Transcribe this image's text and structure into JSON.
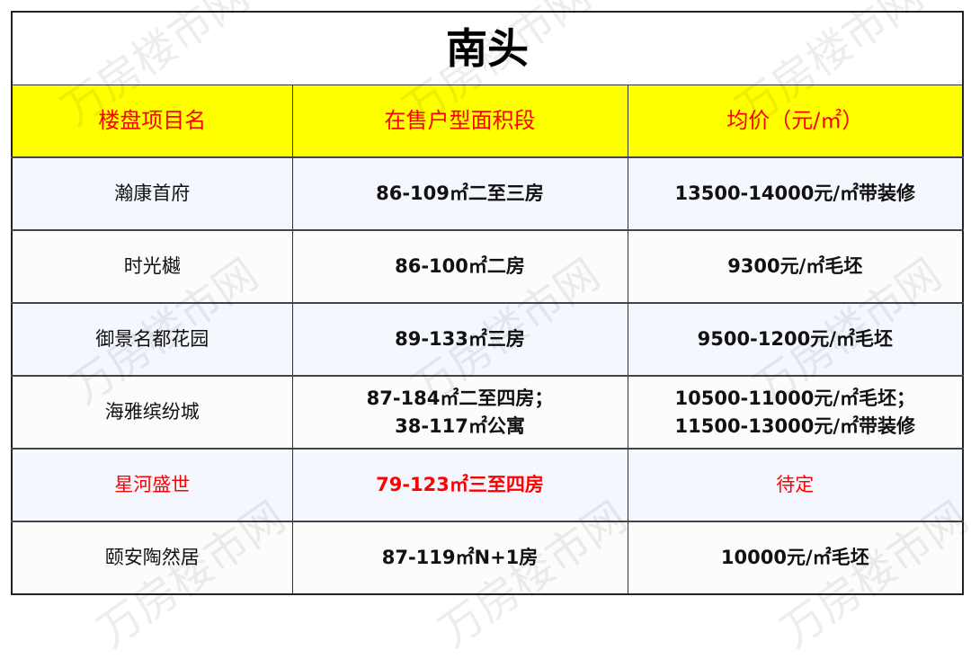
{
  "title": "南头",
  "watermark": "万房楼市网",
  "headers": [
    "楼盘项目名",
    "在售户型面积段",
    "均价（元/㎡）"
  ],
  "rows": [
    {
      "name": "瀚康首府",
      "area": "86-109㎡二至三房",
      "price": "13500-14000元/㎡带装修"
    },
    {
      "name": "时光樾",
      "area": "86-100㎡二房",
      "price": "9300元/㎡毛坯"
    },
    {
      "name": "御景名都花园",
      "area": "89-133㎡三房",
      "price": "9500-1200元/㎡毛坯"
    },
    {
      "name": "海雅缤纷城",
      "area": "87-184㎡二至四房；",
      "area2": "38-117㎡公寓",
      "price": "10500-11000元/㎡毛坯；",
      "price2": "11500-13000元/㎡带装修"
    },
    {
      "name": "星河盛世",
      "area": "79-123㎡三至四房",
      "price": "待定",
      "highlight_color": "#ff0000"
    },
    {
      "name": "颐安陶然居",
      "area": "87-119㎡N+1房",
      "price": "10000元/㎡毛坯"
    }
  ],
  "colors": {
    "header_bg": "#ffff00",
    "header_text": "#ff0000",
    "alt_row_bg": "#f4f7fd"
  }
}
